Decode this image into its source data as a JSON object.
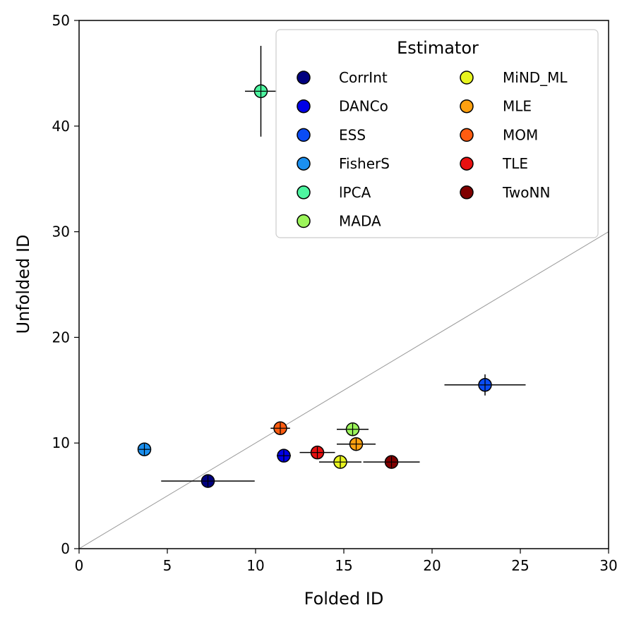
{
  "chart_data": {
    "type": "scatter",
    "title": "",
    "xlabel": "Folded ID",
    "ylabel": "Unfolded ID",
    "xlim": [
      0,
      30
    ],
    "ylim": [
      0,
      50
    ],
    "xticks": [
      "0",
      "5",
      "10",
      "15",
      "20",
      "25",
      "30"
    ],
    "yticks": [
      "0",
      "10",
      "20",
      "30",
      "40",
      "50"
    ],
    "xtick_values": [
      0,
      5,
      10,
      15,
      20,
      25,
      30
    ],
    "ytick_values": [
      0,
      10,
      20,
      30,
      40,
      50
    ],
    "reference_line": {
      "from": [
        0,
        0
      ],
      "to": [
        30,
        30
      ],
      "color": "#999999"
    },
    "legend": {
      "title": "Estimator",
      "placement": "top-right",
      "columns": 2
    },
    "series": [
      {
        "name": "CorrInt",
        "color": "#00007f",
        "x": 7.3,
        "y": 6.4,
        "xerr": 2.65,
        "yerr": 0.3
      },
      {
        "name": "DANCo",
        "color": "#0000e8",
        "x": 11.6,
        "y": 8.8,
        "xerr": 0.4,
        "yerr": 0.4
      },
      {
        "name": "ESS",
        "color": "#0a4cf5",
        "x": 23.0,
        "y": 15.5,
        "xerr": 2.3,
        "yerr": 1.0
      },
      {
        "name": "FisherS",
        "color": "#1b90f0",
        "x": 3.7,
        "y": 9.4,
        "xerr": 0.3,
        "yerr": 0.5
      },
      {
        "name": "lPCA",
        "color": "#4df5a0",
        "x": 10.3,
        "y": 43.3,
        "xerr": 0.9,
        "yerr": 4.3
      },
      {
        "name": "MADA",
        "color": "#9cf55b",
        "x": 15.5,
        "y": 11.3,
        "xerr": 0.9,
        "yerr": 0.3
      },
      {
        "name": "MiND_ML",
        "color": "#e8f520",
        "x": 14.8,
        "y": 8.2,
        "xerr": 1.2,
        "yerr": 0.3
      },
      {
        "name": "MLE",
        "color": "#ffa010",
        "x": 15.7,
        "y": 9.9,
        "xerr": 1.1,
        "yerr": 0.3
      },
      {
        "name": "MOM",
        "color": "#ff5c10",
        "x": 11.4,
        "y": 11.4,
        "xerr": 0.55,
        "yerr": 0.3
      },
      {
        "name": "TLE",
        "color": "#e81010",
        "x": 13.5,
        "y": 9.1,
        "xerr": 1.0,
        "yerr": 0.3
      },
      {
        "name": "TwoNN",
        "color": "#800000",
        "x": 17.7,
        "y": 8.2,
        "xerr": 1.6,
        "yerr": 0.3
      }
    ]
  }
}
